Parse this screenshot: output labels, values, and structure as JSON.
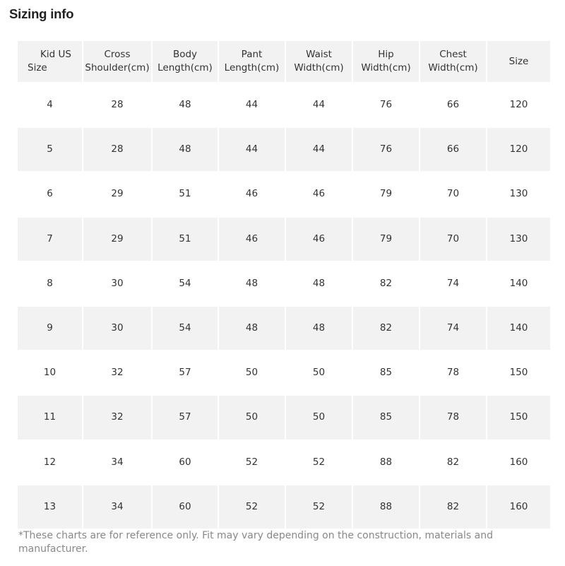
{
  "page_title": "Sizing info",
  "table": {
    "headers": [
      [
        "Kid US",
        "Size"
      ],
      [
        "Cross",
        "Shoulder(cm)"
      ],
      [
        "Body",
        "Length(cm)"
      ],
      [
        "Pant",
        "Length(cm)"
      ],
      [
        "Waist",
        "Width(cm)"
      ],
      [
        "Hip",
        "Width(cm)"
      ],
      [
        "Chest",
        "Width(cm)"
      ],
      [
        "Size"
      ]
    ],
    "rows": [
      [
        "4",
        "28",
        "48",
        "44",
        "44",
        "76",
        "66",
        "120"
      ],
      [
        "5",
        "28",
        "48",
        "44",
        "44",
        "76",
        "66",
        "120"
      ],
      [
        "6",
        "29",
        "51",
        "46",
        "46",
        "79",
        "70",
        "130"
      ],
      [
        "7",
        "29",
        "51",
        "46",
        "46",
        "79",
        "70",
        "130"
      ],
      [
        "8",
        "30",
        "54",
        "48",
        "48",
        "82",
        "74",
        "140"
      ],
      [
        "9",
        "30",
        "54",
        "48",
        "48",
        "82",
        "74",
        "140"
      ],
      [
        "10",
        "32",
        "57",
        "50",
        "50",
        "85",
        "78",
        "150"
      ],
      [
        "11",
        "32",
        "57",
        "50",
        "50",
        "85",
        "78",
        "150"
      ],
      [
        "12",
        "34",
        "60",
        "52",
        "52",
        "88",
        "82",
        "160"
      ],
      [
        "13",
        "34",
        "60",
        "52",
        "52",
        "88",
        "82",
        "160"
      ]
    ]
  },
  "footnote": "*These charts are for reference only. Fit may vary depending on the construction, materials and manufacturer.",
  "colors": {
    "shade": "#f2f2f2",
    "text": "#333333",
    "note": "#888888"
  }
}
